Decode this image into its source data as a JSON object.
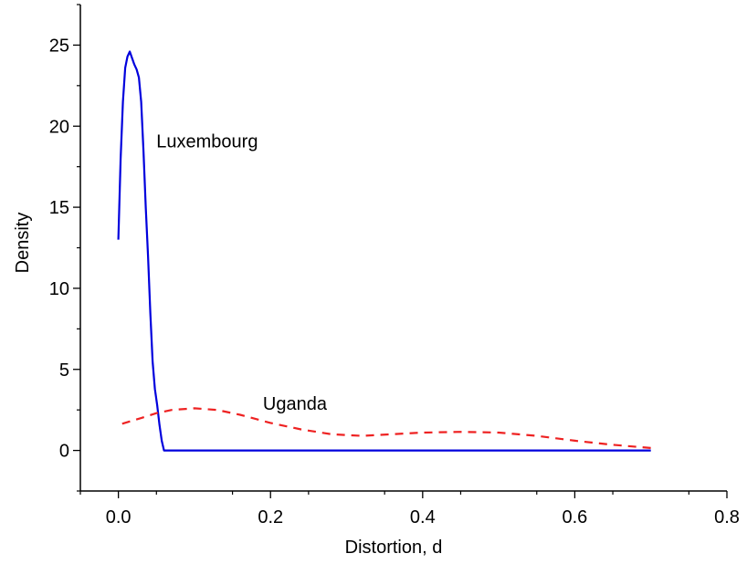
{
  "chart_data": {
    "type": "line",
    "title": "",
    "xlabel": "Distortion, d",
    "ylabel": "Density",
    "xlim": [
      -0.05,
      0.8
    ],
    "ylim": [
      -2.5,
      27.5
    ],
    "x_ticks": [
      0.0,
      0.2,
      0.4,
      0.6,
      0.8
    ],
    "x_tick_labels": [
      "0.0",
      "0.2",
      "0.4",
      "0.6",
      "0.8"
    ],
    "y_ticks": [
      0,
      5,
      10,
      15,
      20,
      25
    ],
    "y_tick_labels": [
      "0",
      "5",
      "10",
      "15",
      "20",
      "25"
    ],
    "grid": false,
    "legend": "none",
    "series": [
      {
        "name": "Luxembourg",
        "color": "#0000dd",
        "style": "solid",
        "x": [
          0.0,
          0.003,
          0.006,
          0.009,
          0.012,
          0.015,
          0.018,
          0.021,
          0.024,
          0.027,
          0.03,
          0.033,
          0.036,
          0.039,
          0.042,
          0.045,
          0.048,
          0.051,
          0.054,
          0.057,
          0.06,
          0.1,
          0.2,
          0.3,
          0.4,
          0.5,
          0.6,
          0.7
        ],
        "y": [
          13.0,
          18.0,
          21.5,
          23.6,
          24.3,
          24.6,
          24.2,
          23.8,
          23.5,
          23.0,
          21.5,
          18.5,
          15.0,
          12.0,
          8.5,
          5.5,
          3.8,
          2.8,
          1.6,
          0.6,
          0.0,
          0.0,
          0.0,
          0.0,
          0.0,
          0.0,
          0.0,
          0.0
        ]
      },
      {
        "name": "Uganda",
        "color": "#ee2222",
        "style": "dashed",
        "x": [
          0.005,
          0.03,
          0.05,
          0.07,
          0.1,
          0.13,
          0.16,
          0.2,
          0.24,
          0.28,
          0.32,
          0.36,
          0.4,
          0.45,
          0.5,
          0.55,
          0.6,
          0.65,
          0.7
        ],
        "y": [
          1.65,
          2.0,
          2.3,
          2.5,
          2.6,
          2.5,
          2.2,
          1.7,
          1.3,
          1.0,
          0.9,
          1.0,
          1.1,
          1.15,
          1.1,
          0.9,
          0.6,
          0.35,
          0.15
        ]
      }
    ],
    "annotations": [
      {
        "text": "Luxembourg",
        "x": 0.05,
        "y": 18.7
      },
      {
        "text": "Uganda",
        "x": 0.19,
        "y": 2.5
      }
    ]
  }
}
